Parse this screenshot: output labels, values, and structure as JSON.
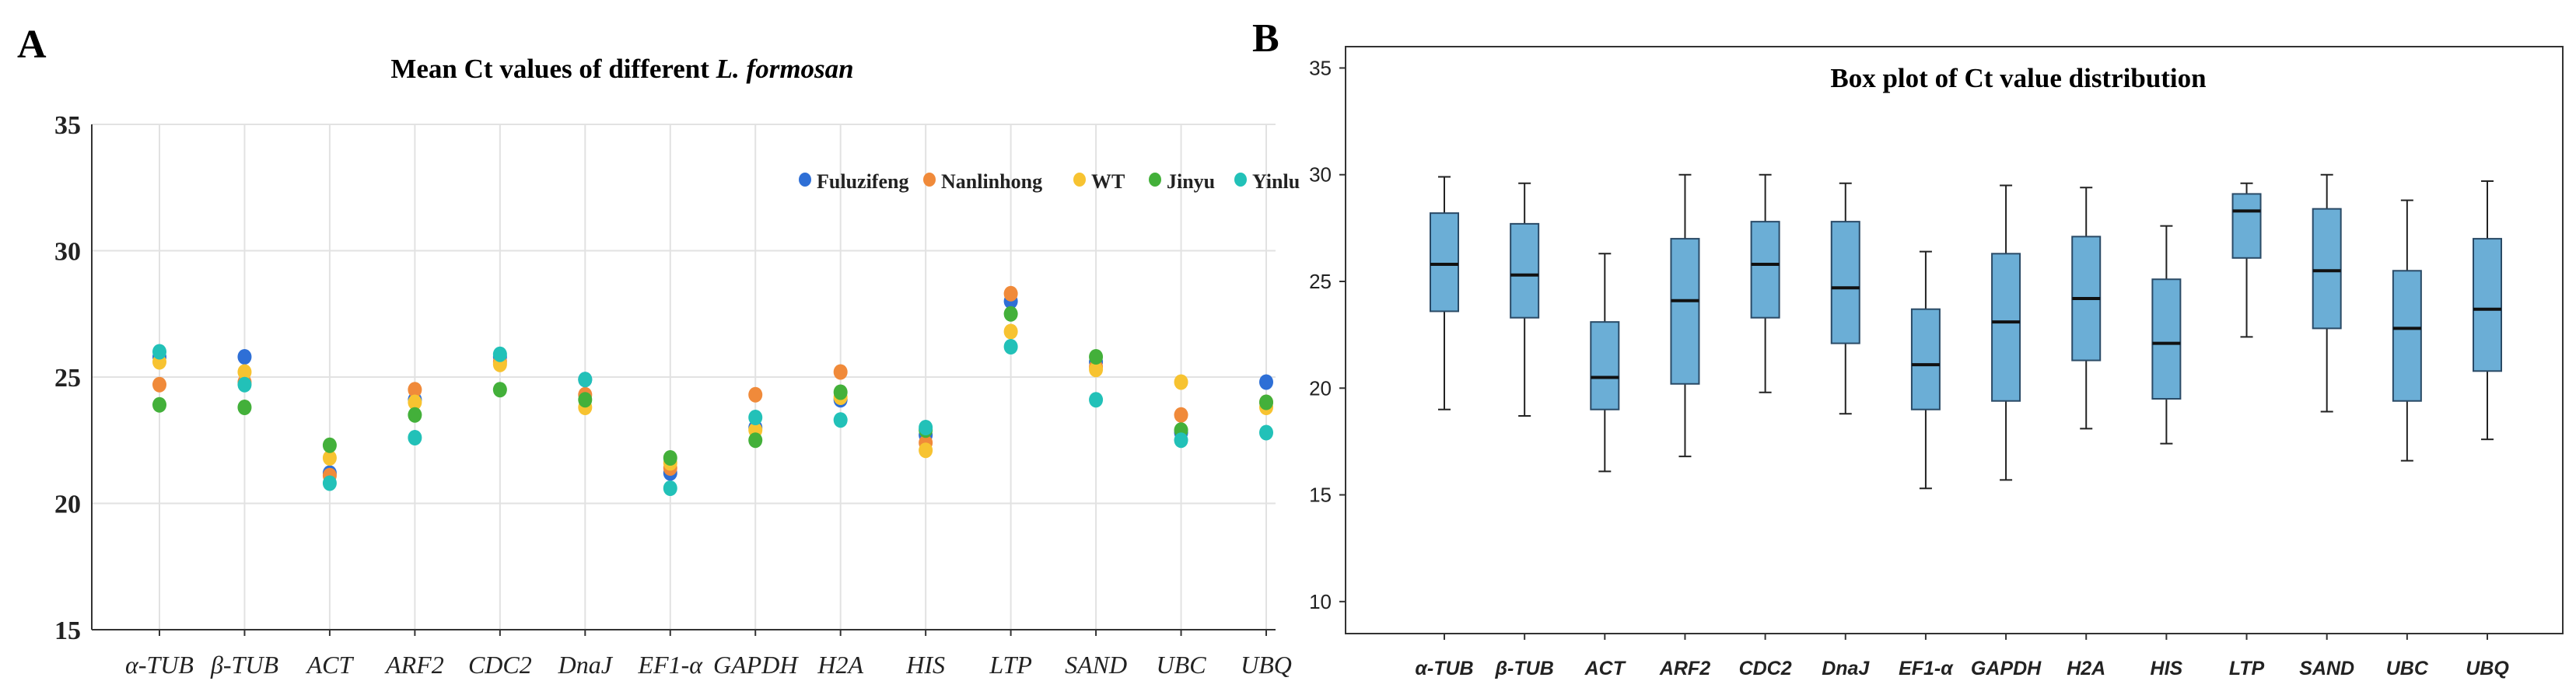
{
  "panels": {
    "a_label": "A",
    "b_label": "B"
  },
  "chart_data": [
    {
      "type": "scatter",
      "title_prefix": "Mean Ct values of different ",
      "title_italic": "L. formosan",
      "xlabel": "",
      "ylabel": "",
      "ylim": [
        15,
        35
      ],
      "yticks": [
        15,
        20,
        25,
        30,
        35
      ],
      "grid": true,
      "legend_position": "top-right",
      "categories": [
        "α-TUB",
        "β-TUB",
        "ACT",
        "ARF2",
        "CDC2",
        "DnaJ",
        "EF1-α",
        "GAPDH",
        "H2A",
        "HIS",
        "LTP",
        "SAND",
        "UBC",
        "UBQ"
      ],
      "series": [
        {
          "name": "Fuluzifeng",
          "color": "#2e6fd6",
          "values": [
            25.8,
            25.8,
            21.2,
            24.1,
            25.8,
            24.9,
            21.2,
            23.0,
            24.1,
            22.7,
            28.0,
            25.6,
            22.8,
            24.8
          ]
        },
        {
          "name": "Nanlinhong",
          "color": "#f08a3a",
          "values": [
            24.7,
            24.8,
            21.1,
            24.5,
            25.6,
            24.3,
            21.4,
            24.3,
            25.2,
            22.4,
            28.3,
            25.4,
            23.5,
            24.0
          ]
        },
        {
          "name": "WT",
          "color": "#f7c331",
          "values": [
            25.6,
            25.2,
            21.8,
            24.0,
            25.5,
            23.8,
            21.6,
            22.9,
            24.2,
            22.1,
            26.8,
            25.3,
            24.8,
            23.8
          ]
        },
        {
          "name": "Jinyu",
          "color": "#43b03a",
          "values": [
            23.9,
            23.8,
            22.3,
            23.5,
            24.5,
            24.1,
            21.8,
            22.5,
            24.4,
            22.9,
            27.5,
            25.8,
            22.9,
            24.0
          ]
        },
        {
          "name": "Yinlu",
          "color": "#22c1b8",
          "values": [
            26.0,
            24.7,
            20.8,
            22.6,
            25.9,
            24.9,
            20.6,
            23.4,
            23.3,
            23.0,
            26.2,
            24.1,
            22.5,
            22.8
          ]
        }
      ]
    },
    {
      "type": "box",
      "title": "Box plot of Ct value distribution",
      "xlabel": "",
      "ylabel": "",
      "ylim": [
        8.5,
        36
      ],
      "yticks": [
        10,
        15,
        20,
        25,
        30,
        35
      ],
      "grid": false,
      "box_color": "#6baed6",
      "categories": [
        "α-TUB",
        "β-TUB",
        "ACT",
        "ARF2",
        "CDC2",
        "DnaJ",
        "EF1-α",
        "GAPDH",
        "H2A",
        "HIS",
        "LTP",
        "SAND",
        "UBC",
        "UBQ"
      ],
      "boxes": [
        {
          "min": 19.0,
          "q1": 23.6,
          "median": 25.8,
          "q3": 28.2,
          "max": 29.9
        },
        {
          "min": 18.7,
          "q1": 23.3,
          "median": 25.3,
          "q3": 27.7,
          "max": 29.6
        },
        {
          "min": 16.1,
          "q1": 19.0,
          "median": 20.5,
          "q3": 23.1,
          "max": 26.3
        },
        {
          "min": 16.8,
          "q1": 20.2,
          "median": 24.1,
          "q3": 27.0,
          "max": 30.0
        },
        {
          "min": 19.8,
          "q1": 23.3,
          "median": 25.8,
          "q3": 27.8,
          "max": 30.0
        },
        {
          "min": 18.8,
          "q1": 22.1,
          "median": 24.7,
          "q3": 27.8,
          "max": 29.6
        },
        {
          "min": 15.3,
          "q1": 19.0,
          "median": 21.1,
          "q3": 23.7,
          "max": 26.4
        },
        {
          "min": 15.7,
          "q1": 19.4,
          "median": 23.1,
          "q3": 26.3,
          "max": 29.5
        },
        {
          "min": 18.1,
          "q1": 21.3,
          "median": 24.2,
          "q3": 27.1,
          "max": 29.4
        },
        {
          "min": 17.4,
          "q1": 19.5,
          "median": 22.1,
          "q3": 25.1,
          "max": 27.6
        },
        {
          "min": 22.4,
          "q1": 26.1,
          "median": 28.3,
          "q3": 29.1,
          "max": 29.6
        },
        {
          "min": 18.9,
          "q1": 22.8,
          "median": 25.5,
          "q3": 28.4,
          "max": 30.0
        },
        {
          "min": 16.6,
          "q1": 19.4,
          "median": 22.8,
          "q3": 25.5,
          "max": 28.8
        },
        {
          "min": 17.6,
          "q1": 20.8,
          "median": 23.7,
          "q3": 27.0,
          "max": 29.7
        }
      ]
    }
  ]
}
